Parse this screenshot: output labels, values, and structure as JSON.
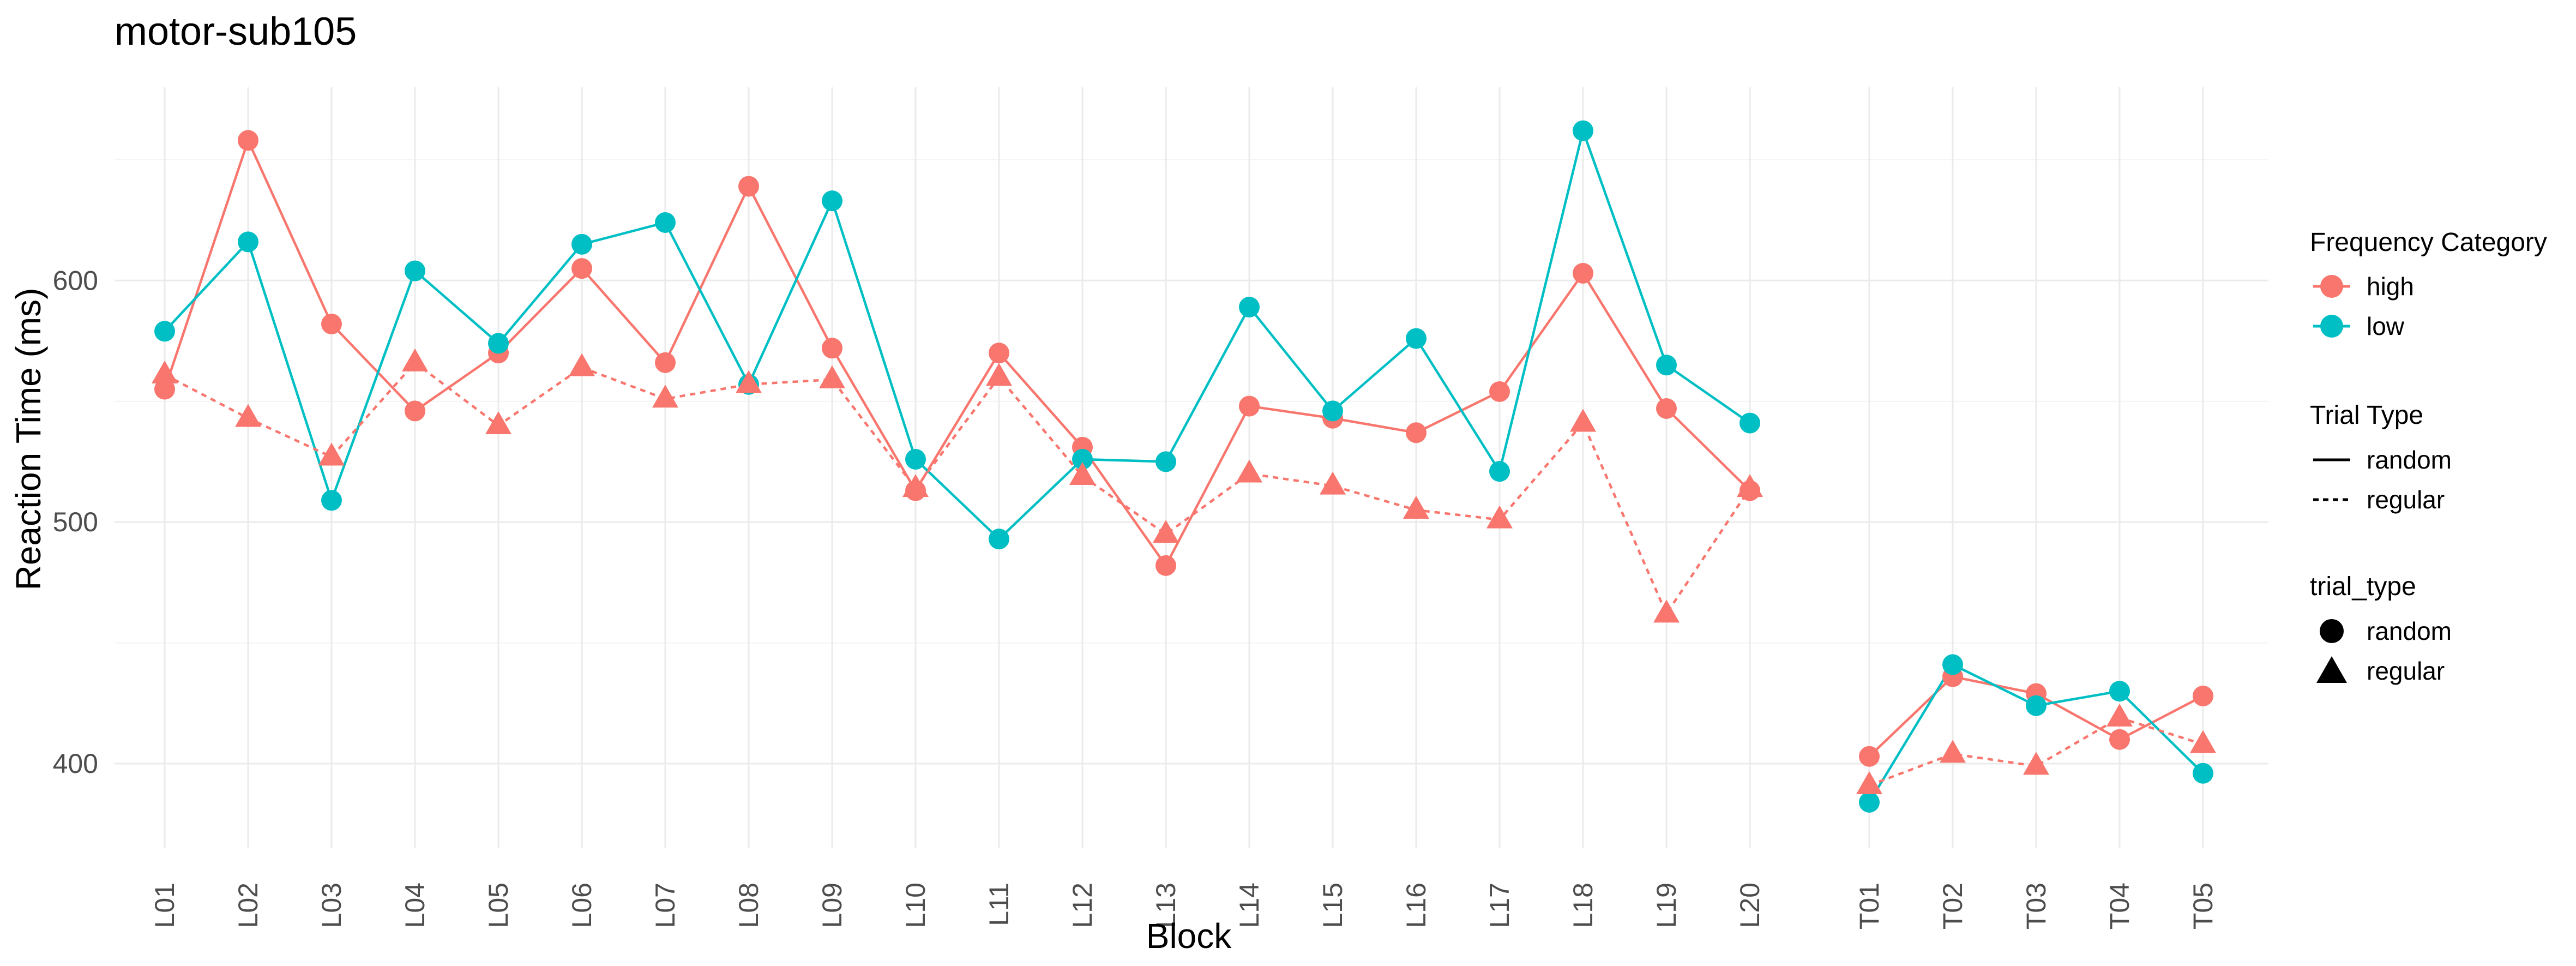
{
  "chart_data": {
    "type": "line",
    "title": "motor-sub105",
    "xlabel": "Block",
    "ylabel": "Reaction Time (ms)",
    "ylim": [
      365,
      680
    ],
    "yticks": [
      400,
      500,
      600
    ],
    "grid": true,
    "legend_position": "right",
    "categories": [
      "L01",
      "L02",
      "L03",
      "L04",
      "L05",
      "L06",
      "L07",
      "L08",
      "L09",
      "L10",
      "L11",
      "L12",
      "L13",
      "L14",
      "L15",
      "L16",
      "L17",
      "L18",
      "L19",
      "L20",
      "T01",
      "T02",
      "T03",
      "T04",
      "T05"
    ],
    "series": [
      {
        "frequency": "high",
        "trial_type": "random",
        "color": "#F8766D",
        "shape": "circle",
        "linetype": "solid",
        "values": [
          555,
          658,
          582,
          546,
          570,
          605,
          566,
          639,
          572,
          513,
          570,
          531,
          482,
          548,
          543,
          537,
          554,
          603,
          547,
          513,
          403,
          436,
          429,
          410,
          428
        ]
      },
      {
        "frequency": "low",
        "trial_type": "random",
        "color": "#00BFC4",
        "shape": "circle",
        "linetype": "solid",
        "values": [
          579,
          616,
          509,
          604,
          574,
          615,
          624,
          557,
          633,
          526,
          493,
          526,
          525,
          589,
          546,
          576,
          521,
          662,
          565,
          541,
          384,
          441,
          424,
          430,
          396
        ]
      },
      {
        "frequency": "high",
        "trial_type": "regular",
        "color": "#F8766D",
        "shape": "triangle",
        "linetype": "dashed",
        "values": [
          561,
          543,
          527,
          566,
          540,
          564,
          551,
          557,
          559,
          514,
          560,
          519,
          495,
          520,
          515,
          505,
          501,
          541,
          462,
          514,
          391,
          404,
          399,
          419,
          408
        ]
      }
    ],
    "legend": {
      "frequency": {
        "title": "Frequency Category",
        "items": [
          {
            "label": "high",
            "color": "#F8766D"
          },
          {
            "label": "low",
            "color": "#00BFC4"
          }
        ]
      },
      "trial_line": {
        "title": "Trial Type",
        "items": [
          {
            "label": "random",
            "linetype": "solid"
          },
          {
            "label": "regular",
            "linetype": "dashed"
          }
        ]
      },
      "trial_shape": {
        "title": "trial_type",
        "items": [
          {
            "label": "random",
            "shape": "circle"
          },
          {
            "label": "regular",
            "shape": "triangle"
          }
        ]
      }
    }
  }
}
